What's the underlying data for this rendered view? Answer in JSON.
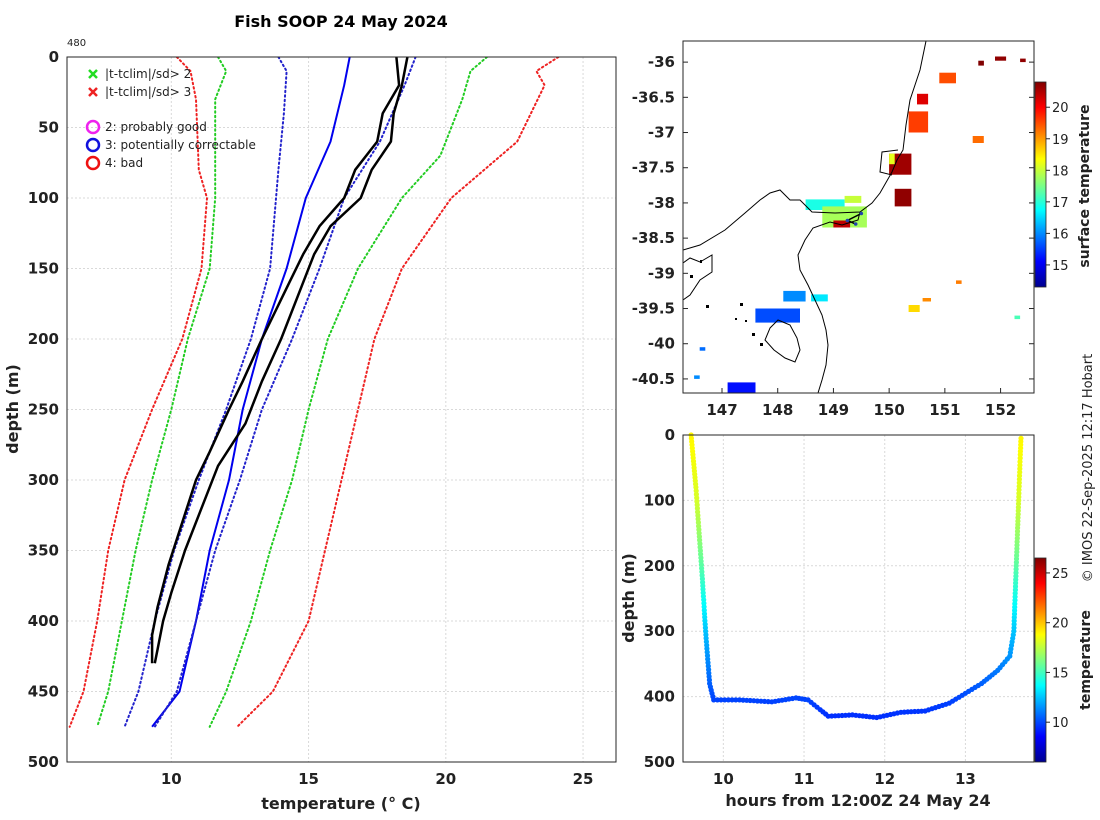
{
  "figure": {
    "title": "Fish SOOP 24 May 2024",
    "profile_count": "480",
    "credit": "© IMOS 22-Sep-2025 12:17 Hobart"
  },
  "chart_data": [
    {
      "id": "profile",
      "type": "line",
      "xlabel": "temperature (° C)",
      "ylabel": "depth (m)",
      "xlim": [
        6.2,
        26.2
      ],
      "ylim": [
        0,
        500
      ],
      "xticks": [
        10,
        15,
        20,
        25
      ],
      "yticks": [
        0,
        50,
        100,
        150,
        200,
        250,
        300,
        350,
        400,
        450,
        500
      ],
      "grid": true,
      "legend": {
        "position": "top-left",
        "entries": [
          {
            "marker": "x",
            "color": "#22dd22",
            "label": "|t-tclim|/sd> 2"
          },
          {
            "marker": "x",
            "color": "#ee2222",
            "label": "|t-tclim|/sd> 3"
          },
          {
            "marker": "o",
            "color": "#ee22ee",
            "label": "2: probably good"
          },
          {
            "marker": "o",
            "color": "#1111dd",
            "label": "3: potentially correctable"
          },
          {
            "marker": "o",
            "color": "#ee1111",
            "label": "4: bad"
          }
        ]
      },
      "series": [
        {
          "name": "climatology mean",
          "color": "#0000ee",
          "style": "solid",
          "width": 2,
          "points": [
            [
              16.5,
              0
            ],
            [
              16.3,
              20
            ],
            [
              15.8,
              60
            ],
            [
              14.9,
              100
            ],
            [
              14.2,
              150
            ],
            [
              13.3,
              200
            ],
            [
              12.6,
              250
            ],
            [
              12.1,
              300
            ],
            [
              11.4,
              350
            ],
            [
              10.9,
              400
            ],
            [
              10.3,
              450
            ],
            [
              9.3,
              475
            ]
          ]
        },
        {
          "name": "mean - 2sd",
          "color": "#22cc22",
          "style": "dotted",
          "width": 2,
          "points": [
            [
              11.7,
              0
            ],
            [
              12.0,
              10
            ],
            [
              11.6,
              30
            ],
            [
              11.6,
              80
            ],
            [
              11.6,
              100
            ],
            [
              11.4,
              150
            ],
            [
              10.6,
              200
            ],
            [
              10.0,
              250
            ],
            [
              9.3,
              300
            ],
            [
              8.7,
              350
            ],
            [
              8.2,
              400
            ],
            [
              7.7,
              450
            ],
            [
              7.3,
              475
            ]
          ]
        },
        {
          "name": "mean + 2sd",
          "color": "#22cc22",
          "style": "dotted",
          "width": 2,
          "points": [
            [
              21.5,
              0
            ],
            [
              20.9,
              10
            ],
            [
              20.6,
              30
            ],
            [
              19.8,
              70
            ],
            [
              18.4,
              100
            ],
            [
              16.8,
              150
            ],
            [
              15.7,
              200
            ],
            [
              15.0,
              250
            ],
            [
              14.4,
              300
            ],
            [
              13.6,
              350
            ],
            [
              12.9,
              400
            ],
            [
              12.0,
              450
            ],
            [
              11.4,
              475
            ]
          ]
        },
        {
          "name": "mean - 3sd",
          "color": "#ee2222",
          "style": "dotted",
          "width": 2,
          "points": [
            [
              10.2,
              0
            ],
            [
              10.7,
              10
            ],
            [
              10.9,
              30
            ],
            [
              11.0,
              80
            ],
            [
              11.3,
              100
            ],
            [
              11.1,
              150
            ],
            [
              10.4,
              200
            ],
            [
              9.3,
              250
            ],
            [
              8.3,
              300
            ],
            [
              7.7,
              350
            ],
            [
              7.3,
              400
            ],
            [
              6.8,
              450
            ],
            [
              6.3,
              475
            ]
          ]
        },
        {
          "name": "mean + 3sd",
          "color": "#ee2222",
          "style": "dotted",
          "width": 2,
          "points": [
            [
              24.1,
              0
            ],
            [
              23.3,
              10
            ],
            [
              23.6,
              20
            ],
            [
              22.6,
              60
            ],
            [
              20.2,
              100
            ],
            [
              18.4,
              150
            ],
            [
              17.4,
              200
            ],
            [
              16.8,
              250
            ],
            [
              16.2,
              300
            ],
            [
              15.6,
              350
            ],
            [
              15.0,
              400
            ],
            [
              13.7,
              450
            ],
            [
              12.4,
              475
            ]
          ]
        },
        {
          "name": "mean - 1sd",
          "color": "#2222cc",
          "style": "dotted",
          "width": 2,
          "points": [
            [
              13.9,
              0
            ],
            [
              14.2,
              10
            ],
            [
              14.1,
              40
            ],
            [
              13.9,
              80
            ],
            [
              13.6,
              150
            ],
            [
              12.9,
              200
            ],
            [
              12.0,
              250
            ],
            [
              11.0,
              300
            ],
            [
              10.1,
              350
            ],
            [
              9.4,
              400
            ],
            [
              8.8,
              450
            ],
            [
              8.3,
              475
            ]
          ]
        },
        {
          "name": "mean + 1sd",
          "color": "#2222cc",
          "style": "dotted",
          "width": 2,
          "points": [
            [
              18.9,
              0
            ],
            [
              18.5,
              20
            ],
            [
              17.6,
              60
            ],
            [
              16.3,
              100
            ],
            [
              15.4,
              150
            ],
            [
              14.4,
              200
            ],
            [
              13.3,
              250
            ],
            [
              12.5,
              300
            ],
            [
              11.6,
              350
            ],
            [
              10.9,
              400
            ],
            [
              10.2,
              450
            ],
            [
              9.4,
              475
            ]
          ]
        },
        {
          "name": "observed profile (down)",
          "color": "#000000",
          "style": "solid",
          "width": 2.5,
          "points": [
            [
              18.2,
              0
            ],
            [
              18.3,
              20
            ],
            [
              17.7,
              40
            ],
            [
              17.5,
              60
            ],
            [
              16.7,
              80
            ],
            [
              16.3,
              100
            ],
            [
              15.4,
              120
            ],
            [
              14.8,
              140
            ],
            [
              14.3,
              160
            ],
            [
              13.3,
              200
            ],
            [
              12.6,
              230
            ],
            [
              12.1,
              250
            ],
            [
              11.4,
              280
            ],
            [
              10.9,
              300
            ],
            [
              10.4,
              330
            ],
            [
              9.9,
              360
            ],
            [
              9.5,
              390
            ],
            [
              9.3,
              410
            ],
            [
              9.3,
              430
            ]
          ]
        },
        {
          "name": "observed profile (up)",
          "color": "#000000",
          "style": "solid",
          "width": 2.5,
          "points": [
            [
              18.6,
              0
            ],
            [
              18.4,
              20
            ],
            [
              18.1,
              40
            ],
            [
              18.0,
              60
            ],
            [
              17.3,
              80
            ],
            [
              16.9,
              100
            ],
            [
              15.8,
              120
            ],
            [
              15.2,
              140
            ],
            [
              14.8,
              160
            ],
            [
              14.0,
              200
            ],
            [
              13.3,
              230
            ],
            [
              12.7,
              260
            ],
            [
              11.7,
              290
            ],
            [
              11.1,
              320
            ],
            [
              10.5,
              350
            ],
            [
              10.0,
              380
            ],
            [
              9.7,
              400
            ],
            [
              9.5,
              420
            ],
            [
              9.4,
              430
            ]
          ]
        }
      ]
    },
    {
      "id": "track",
      "type": "scatter",
      "xlabel": "hours from 12:00Z 24 May 24",
      "ylabel": "depth (m)",
      "xlim": [
        9.5,
        13.85
      ],
      "ylim": [
        0,
        500
      ],
      "xticks": [
        10,
        11,
        12,
        13
      ],
      "yticks": [
        0,
        100,
        200,
        300,
        400,
        500
      ],
      "grid": true,
      "colorbar": {
        "label": "temperature",
        "min": 6,
        "max": 26.5,
        "ticks": [
          10,
          15,
          20,
          25
        ]
      },
      "track": [
        [
          9.6,
          0
        ],
        [
          9.63,
          40
        ],
        [
          9.66,
          80
        ],
        [
          9.7,
          150
        ],
        [
          9.74,
          220
        ],
        [
          9.78,
          300
        ],
        [
          9.83,
          380
        ],
        [
          9.88,
          405
        ],
        [
          10.2,
          405
        ],
        [
          10.6,
          408
        ],
        [
          10.9,
          402
        ],
        [
          11.05,
          405
        ],
        [
          11.2,
          420
        ],
        [
          11.3,
          430
        ],
        [
          11.6,
          428
        ],
        [
          11.9,
          432
        ],
        [
          12.2,
          424
        ],
        [
          12.5,
          422
        ],
        [
          12.8,
          410
        ],
        [
          13.0,
          395
        ],
        [
          13.2,
          380
        ],
        [
          13.4,
          360
        ],
        [
          13.55,
          338
        ],
        [
          13.6,
          300
        ],
        [
          13.63,
          200
        ],
        [
          13.66,
          100
        ],
        [
          13.68,
          30
        ],
        [
          13.69,
          0
        ]
      ],
      "temperature_track": [
        [
          0,
          19
        ],
        [
          100,
          18
        ],
        [
          200,
          15.5
        ],
        [
          300,
          12.5
        ],
        [
          400,
          10
        ],
        [
          430,
          9.5
        ]
      ]
    },
    {
      "id": "map",
      "type": "heatmap",
      "xlabel": "",
      "ylabel": "",
      "xlim": [
        146.3,
        152.6
      ],
      "ylim": [
        -40.7,
        -35.7
      ],
      "xticks": [
        147,
        148,
        149,
        150,
        151,
        152
      ],
      "yticks": [
        -36,
        -36.5,
        -37,
        -37.5,
        -38,
        -38.5,
        -39,
        -39.5,
        -40,
        -40.5
      ],
      "colorbar": {
        "label": "surface temperature",
        "min": 14.3,
        "max": 20.8,
        "ticks": [
          15,
          16,
          17,
          18,
          19,
          20
        ]
      },
      "sst_patches": [
        {
          "lon": [
            150.0,
            150.4
          ],
          "lat": [
            -37.6,
            -37.3
          ],
          "t": 20.6
        },
        {
          "lon": [
            150.1,
            150.4
          ],
          "lat": [
            -38.05,
            -37.8
          ],
          "t": 20.7
        },
        {
          "lon": [
            150.35,
            150.7
          ],
          "lat": [
            -37.0,
            -36.7
          ],
          "t": 19.6
        },
        {
          "lon": [
            150.5,
            150.7
          ],
          "lat": [
            -36.6,
            -36.45
          ],
          "t": 20.2
        },
        {
          "lon": [
            150.9,
            151.2
          ],
          "lat": [
            -36.3,
            -36.15
          ],
          "t": 19.5
        },
        {
          "lon": [
            151.6,
            151.7
          ],
          "lat": [
            -36.05,
            -35.98
          ],
          "t": 20.8
        },
        {
          "lon": [
            151.9,
            152.1
          ],
          "lat": [
            -35.98,
            -35.92
          ],
          "t": 20.7
        },
        {
          "lon": [
            152.35,
            152.45
          ],
          "lat": [
            -36.0,
            -35.95
          ],
          "t": 20.7
        },
        {
          "lon": [
            151.5,
            151.7
          ],
          "lat": [
            -37.15,
            -37.05
          ],
          "t": 19.3
        },
        {
          "lon": [
            150.0,
            150.1
          ],
          "lat": [
            -37.45,
            -37.3
          ],
          "t": 18.2
        },
        {
          "lon": [
            148.5,
            149.2
          ],
          "lat": [
            -38.1,
            -37.95
          ],
          "t": 16.9
        },
        {
          "lon": [
            148.8,
            149.6
          ],
          "lat": [
            -38.35,
            -38.05
          ],
          "t": 17.8
        },
        {
          "lon": [
            149.2,
            149.5
          ],
          "lat": [
            -38.0,
            -37.9
          ],
          "t": 18.0
        },
        {
          "lon": [
            149.0,
            149.3
          ],
          "lat": [
            -38.35,
            -38.25
          ],
          "t": 20.4
        },
        {
          "lon": [
            148.1,
            148.5
          ],
          "lat": [
            -39.4,
            -39.25
          ],
          "t": 16.0
        },
        {
          "lon": [
            147.6,
            148.4
          ],
          "lat": [
            -39.7,
            -39.5
          ],
          "t": 15.6
        },
        {
          "lon": [
            148.6,
            148.9
          ],
          "lat": [
            -39.4,
            -39.3
          ],
          "t": 16.6
        },
        {
          "lon": [
            147.1,
            147.6
          ],
          "lat": [
            -40.7,
            -40.55
          ],
          "t": 15.2
        },
        {
          "lon": [
            146.5,
            146.6
          ],
          "lat": [
            -40.5,
            -40.45
          ],
          "t": 16.0
        },
        {
          "lon": [
            146.6,
            146.7
          ],
          "lat": [
            -40.1,
            -40.05
          ],
          "t": 15.8
        },
        {
          "lon": [
            150.35,
            150.55
          ],
          "lat": [
            -39.55,
            -39.45
          ],
          "t": 18.6
        },
        {
          "lon": [
            150.6,
            150.75
          ],
          "lat": [
            -39.4,
            -39.35
          ],
          "t": 19.1
        },
        {
          "lon": [
            151.2,
            151.3
          ],
          "lat": [
            -39.15,
            -39.1
          ],
          "t": 19.2
        },
        {
          "lon": [
            152.25,
            152.35
          ],
          "lat": [
            -39.65,
            -39.6
          ],
          "t": 17.2
        }
      ],
      "ship_track": [
        [
          149.5,
          -38.15
        ],
        [
          149.25,
          -38.25
        ],
        [
          149.4,
          -38.3
        ]
      ]
    }
  ]
}
